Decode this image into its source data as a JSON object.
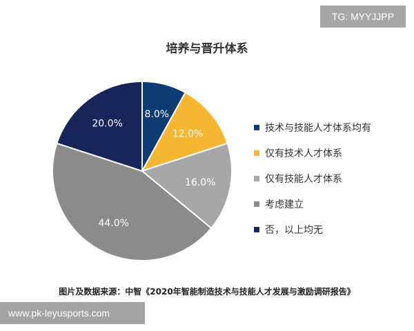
{
  "badge": {
    "text": "TG: MYYJJPP"
  },
  "chart_data": {
    "type": "pie",
    "title": "培养与晋升体系",
    "categories": [
      "技术与技能人才体系均有",
      "仅有技术人才体系",
      "仅有技能人才体系",
      "考虑建立",
      "否，以上均无"
    ],
    "values": [
      8.0,
      12.0,
      16.0,
      44.0,
      20.0
    ],
    "labels": [
      "8.0%",
      "12.0%",
      "16.0%",
      "44.0%",
      "20.0%"
    ],
    "colors": [
      "#0d3b73",
      "#f5b731",
      "#a7a7a7",
      "#8b8b8b",
      "#17255a"
    ],
    "legend_position": "right"
  },
  "source": "图片及数据来源：中智《2020年智能制造技术与技能人才发展与激励调研报告》",
  "watermark": {
    "text": "www.pk-leyusports.com"
  }
}
